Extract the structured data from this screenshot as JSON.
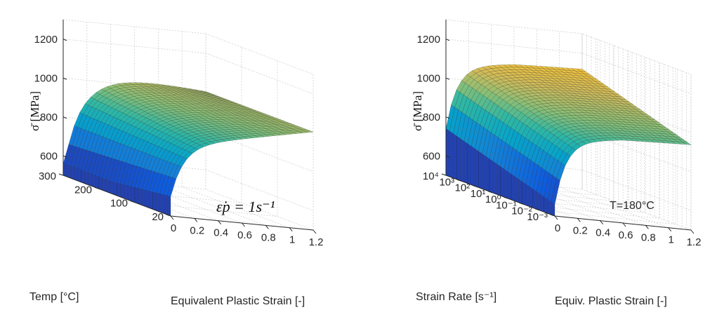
{
  "chart_data": [
    {
      "type": "surface",
      "zlabel": "σ̄ [MPa]",
      "xlabel": "Equivalent Plastic Strain [-]",
      "ylabel": "Temp [°C]",
      "annotation": "ε̇p = 1s⁻¹",
      "z_ticks": [
        "600",
        "800",
        "1000",
        "1200"
      ],
      "y_ticks": [
        "300",
        "200",
        "100",
        "20"
      ],
      "x_ticks": [
        "0",
        "0.2",
        "0.4",
        "0.6",
        "0.8",
        "1",
        "1.2"
      ],
      "zlim": [
        500,
        1300
      ],
      "ylim": [
        20,
        300
      ],
      "xlim": [
        0,
        1.2
      ],
      "colormap": [
        "#352a87",
        "#0f5cdd",
        "#1481d6",
        "#06a4ca",
        "#2eb7a4",
        "#87bf77",
        "#d1bb59",
        "#fec832",
        "#f9fb0e"
      ]
    },
    {
      "type": "surface",
      "zlabel": "σ̄ [MPa]",
      "xlabel": "Equiv. Plastic Strain [-]",
      "ylabel": "Strain Rate [s⁻¹]",
      "annotation": "T=180°C",
      "z_ticks": [
        "600",
        "800",
        "1000",
        "1200"
      ],
      "y_ticks": [
        "10⁴",
        "10³",
        "10²",
        "10¹",
        "10⁰",
        "10⁻¹",
        "10⁻²",
        "10⁻³"
      ],
      "x_ticks": [
        "0",
        "0.2",
        "0.4",
        "0.6",
        "0.8",
        "1",
        "1.2"
      ],
      "zlim": [
        500,
        1300
      ],
      "y_scale": "log",
      "xlim": [
        0,
        1.2
      ],
      "colormap": [
        "#352a87",
        "#0f5cdd",
        "#1481d6",
        "#06a4ca",
        "#2eb7a4",
        "#87bf77",
        "#d1bb59",
        "#fec832",
        "#f9fb0e"
      ]
    }
  ]
}
